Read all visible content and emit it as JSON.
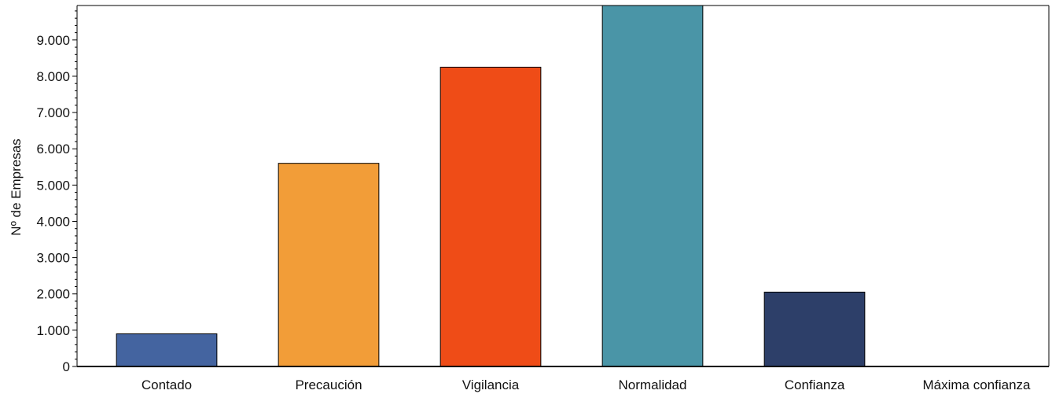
{
  "chart_data": {
    "type": "bar",
    "title": "",
    "xlabel": "",
    "ylabel": "Nº de Empresas",
    "ylim": [
      0,
      9950
    ],
    "yticks": [
      0,
      1000,
      2000,
      3000,
      4000,
      5000,
      6000,
      7000,
      8000,
      9000
    ],
    "ytick_labels": [
      "0",
      "1.000",
      "2.000",
      "3.000",
      "4.000",
      "5.000",
      "6.000",
      "7.000",
      "8.000",
      "9.000"
    ],
    "categories": [
      "Contado",
      "Precaución",
      "Vigilancia",
      "Normalidad",
      "Confianza",
      "Máxima confianza"
    ],
    "values": [
      900,
      5600,
      8250,
      9950,
      2050,
      0
    ],
    "colors": [
      "#4464a0",
      "#f29d38",
      "#ef4c17",
      "#4a95a7",
      "#2d3f69",
      "#2d3f69"
    ],
    "grid": false,
    "legend": "none"
  }
}
